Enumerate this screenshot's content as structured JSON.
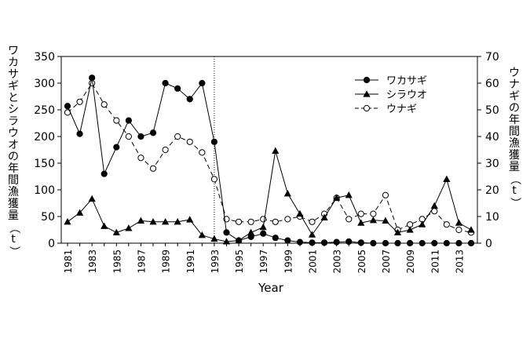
{
  "chart_data": {
    "type": "line",
    "xlabel": "Year",
    "ylabel_left": "ワカサギとシラウオの年間漁獲量（t）",
    "ylabel_right": "ウナギの年間漁獲量（t）",
    "ylim_left": [
      0,
      350
    ],
    "ylim_right": [
      0,
      70
    ],
    "yticks_left": [
      "0",
      "50",
      "100",
      "150",
      "200",
      "250",
      "300",
      "350"
    ],
    "yticks_right": [
      "0",
      "10",
      "20",
      "30",
      "40",
      "50",
      "60",
      "70"
    ],
    "x": [
      1981,
      1982,
      1983,
      1984,
      1985,
      1986,
      1987,
      1988,
      1989,
      1990,
      1991,
      1992,
      1993,
      1994,
      1995,
      1996,
      1997,
      1998,
      1999,
      2000,
      2001,
      2002,
      2003,
      2004,
      2005,
      2006,
      2007,
      2008,
      2009,
      2010,
      2011,
      2012,
      2013,
      2014
    ],
    "xtick_labels": [
      "1981",
      "1983",
      "1985",
      "1987",
      "1989",
      "1991",
      "1993",
      "1995",
      "1997",
      "1999",
      "2001",
      "2003",
      "2005",
      "2007",
      "2009",
      "2011",
      "2013"
    ],
    "reference_line_x": 1993,
    "legend_position": "top-right",
    "series": [
      {
        "name": "ワカサギ",
        "axis": "left",
        "marker": "filled-circle",
        "line": "solid",
        "values": [
          257,
          205,
          310,
          130,
          180,
          230,
          200,
          207,
          300,
          290,
          270,
          300,
          190,
          20,
          5,
          12,
          18,
          10,
          5,
          2,
          1,
          1,
          2,
          3,
          1,
          0,
          0,
          0,
          0,
          0,
          0,
          0,
          0,
          0
        ]
      },
      {
        "name": "シラウオ",
        "axis": "left",
        "marker": "filled-triangle",
        "line": "solid",
        "values": [
          40,
          57,
          83,
          32,
          20,
          28,
          42,
          40,
          40,
          40,
          44,
          15,
          8,
          3,
          5,
          20,
          30,
          173,
          93,
          55,
          16,
          48,
          85,
          90,
          38,
          43,
          42,
          20,
          25,
          35,
          70,
          120,
          38,
          25
        ]
      },
      {
        "name": "ウナギ",
        "axis": "right",
        "marker": "open-circle",
        "line": "dashed",
        "values": [
          49,
          53,
          60,
          52,
          46,
          40,
          32,
          28,
          35,
          40,
          38,
          34,
          24,
          9,
          8,
          8,
          9,
          8,
          9,
          10,
          8,
          11,
          17,
          9,
          11,
          11,
          18,
          5,
          7,
          9,
          12,
          7,
          5,
          4
        ]
      }
    ]
  }
}
